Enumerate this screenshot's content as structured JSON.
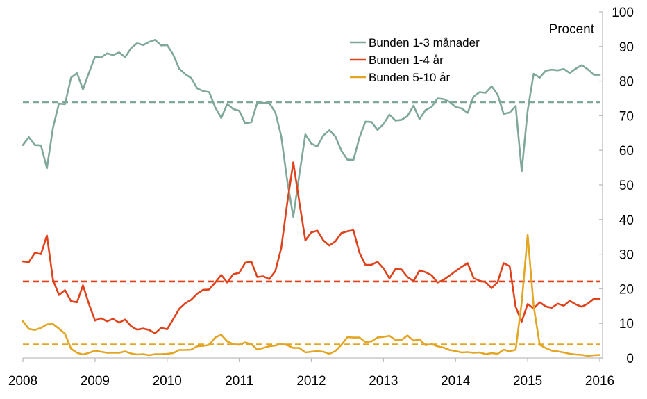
{
  "chart_data": {
    "type": "line",
    "unit_label": "Procent",
    "ylim": [
      0,
      100
    ],
    "y_ticks": [
      0,
      10,
      20,
      30,
      40,
      50,
      60,
      70,
      80,
      90,
      100
    ],
    "x_range": [
      2008,
      2016
    ],
    "x_ticks": [
      2008,
      2009,
      2010,
      2011,
      2012,
      2013,
      2014,
      2015,
      2016
    ],
    "legend_position": "top-right",
    "series": [
      {
        "name": "Bunden 1-3 månader",
        "color": "#7fa898",
        "x": [
          2008.0,
          2008.083,
          2008.167,
          2008.25,
          2008.333,
          2008.417,
          2008.5,
          2008.583,
          2008.667,
          2008.75,
          2008.833,
          2008.917,
          2009.0,
          2009.083,
          2009.167,
          2009.25,
          2009.333,
          2009.417,
          2009.5,
          2009.583,
          2009.667,
          2009.75,
          2009.833,
          2009.917,
          2010.0,
          2010.083,
          2010.167,
          2010.25,
          2010.333,
          2010.417,
          2010.5,
          2010.583,
          2010.667,
          2010.75,
          2010.833,
          2010.917,
          2011.0,
          2011.083,
          2011.167,
          2011.25,
          2011.333,
          2011.417,
          2011.5,
          2011.583,
          2011.667,
          2011.75,
          2011.833,
          2011.917,
          2012.0,
          2012.083,
          2012.167,
          2012.25,
          2012.333,
          2012.417,
          2012.5,
          2012.583,
          2012.667,
          2012.75,
          2012.833,
          2012.917,
          2013.0,
          2013.083,
          2013.167,
          2013.25,
          2013.333,
          2013.417,
          2013.5,
          2013.583,
          2013.667,
          2013.75,
          2013.833,
          2013.917,
          2014.0,
          2014.083,
          2014.167,
          2014.25,
          2014.333,
          2014.417,
          2014.5,
          2014.583,
          2014.667,
          2014.75,
          2014.833,
          2014.917,
          2015.0,
          2015.083,
          2015.167,
          2015.25,
          2015.333,
          2015.417,
          2015.5,
          2015.583,
          2015.667,
          2015.75,
          2015.833,
          2015.917,
          2016.0
        ],
        "values": [
          61.5,
          63.8,
          61.5,
          61.4,
          54.8,
          66.5,
          73.5,
          73.3,
          81.0,
          82.3,
          77.6,
          82.5,
          87.0,
          86.8,
          88.0,
          87.5,
          88.3,
          86.9,
          89.5,
          90.9,
          90.4,
          91.3,
          91.9,
          90.3,
          90.4,
          87.7,
          83.6,
          82.0,
          80.9,
          77.9,
          77.1,
          76.8,
          72.4,
          69.3,
          73.4,
          71.9,
          71.4,
          67.8,
          68.1,
          73.8,
          73.7,
          73.6,
          71.0,
          64.0,
          51.0,
          40.8,
          53.0,
          64.6,
          61.9,
          61.1,
          64.3,
          65.8,
          64.0,
          59.9,
          57.3,
          57.2,
          63.7,
          68.3,
          68.2,
          65.9,
          67.6,
          70.3,
          68.6,
          68.8,
          69.9,
          72.9,
          69.0,
          71.6,
          72.5,
          75.0,
          74.8,
          74.0,
          72.5,
          72.1,
          70.8,
          75.5,
          76.8,
          76.6,
          78.5,
          76.1,
          70.5,
          70.9,
          72.8,
          54.0,
          71.5,
          82.1,
          81.0,
          83.0,
          83.3,
          83.1,
          83.5,
          82.3,
          83.6,
          84.6,
          83.4,
          81.8,
          81.8
        ],
        "reference_level": 73.9
      },
      {
        "name": "Bunden 1-4 år",
        "color": "#e0421c",
        "x": [
          2008.0,
          2008.083,
          2008.167,
          2008.25,
          2008.333,
          2008.417,
          2008.5,
          2008.583,
          2008.667,
          2008.75,
          2008.833,
          2008.917,
          2009.0,
          2009.083,
          2009.167,
          2009.25,
          2009.333,
          2009.417,
          2009.5,
          2009.583,
          2009.667,
          2009.75,
          2009.833,
          2009.917,
          2010.0,
          2010.083,
          2010.167,
          2010.25,
          2010.333,
          2010.417,
          2010.5,
          2010.583,
          2010.667,
          2010.75,
          2010.833,
          2010.917,
          2011.0,
          2011.083,
          2011.167,
          2011.25,
          2011.333,
          2011.417,
          2011.5,
          2011.583,
          2011.667,
          2011.75,
          2011.833,
          2011.917,
          2012.0,
          2012.083,
          2012.167,
          2012.25,
          2012.333,
          2012.417,
          2012.5,
          2012.583,
          2012.667,
          2012.75,
          2012.833,
          2012.917,
          2013.0,
          2013.083,
          2013.167,
          2013.25,
          2013.333,
          2013.417,
          2013.5,
          2013.583,
          2013.667,
          2013.75,
          2013.833,
          2013.917,
          2014.0,
          2014.083,
          2014.167,
          2014.25,
          2014.333,
          2014.417,
          2014.5,
          2014.583,
          2014.667,
          2014.75,
          2014.833,
          2014.917,
          2015.0,
          2015.083,
          2015.167,
          2015.25,
          2015.333,
          2015.417,
          2015.5,
          2015.583,
          2015.667,
          2015.75,
          2015.833,
          2015.917,
          2016.0
        ],
        "values": [
          27.9,
          27.7,
          30.4,
          30.0,
          35.4,
          22.6,
          18.2,
          19.6,
          16.4,
          16.1,
          21.0,
          15.5,
          10.8,
          11.5,
          10.6,
          11.3,
          10.2,
          11.1,
          9.2,
          8.2,
          8.5,
          8.1,
          7.1,
          8.7,
          8.3,
          11.2,
          14.2,
          15.8,
          16.8,
          18.6,
          19.7,
          19.8,
          21.8,
          24.0,
          21.8,
          24.2,
          24.6,
          27.5,
          27.9,
          23.4,
          23.6,
          22.8,
          25.1,
          31.8,
          45.0,
          56.5,
          45.0,
          34.0,
          36.3,
          36.8,
          34.0,
          32.5,
          33.7,
          36.1,
          36.6,
          36.9,
          30.4,
          26.9,
          26.9,
          27.8,
          25.9,
          23.0,
          25.7,
          25.6,
          23.4,
          22.2,
          25.3,
          24.8,
          23.9,
          21.8,
          22.6,
          23.8,
          25.1,
          26.3,
          27.4,
          23.1,
          22.3,
          21.9,
          20.2,
          21.9,
          27.4,
          26.5,
          14.8,
          10.5,
          15.6,
          14.3,
          16.1,
          14.9,
          14.5,
          15.7,
          15.1,
          16.5,
          15.5,
          14.8,
          15.7,
          17.1,
          17.0
        ],
        "reference_level": 22.1
      },
      {
        "name": "Bunden 5-10 år",
        "color": "#e3a524",
        "x": [
          2008.0,
          2008.083,
          2008.167,
          2008.25,
          2008.333,
          2008.417,
          2008.5,
          2008.583,
          2008.667,
          2008.75,
          2008.833,
          2008.917,
          2009.0,
          2009.083,
          2009.167,
          2009.25,
          2009.333,
          2009.417,
          2009.5,
          2009.583,
          2009.667,
          2009.75,
          2009.833,
          2009.917,
          2010.0,
          2010.083,
          2010.167,
          2010.25,
          2010.333,
          2010.417,
          2010.5,
          2010.583,
          2010.667,
          2010.75,
          2010.833,
          2010.917,
          2011.0,
          2011.083,
          2011.167,
          2011.25,
          2011.333,
          2011.417,
          2011.5,
          2011.583,
          2011.667,
          2011.75,
          2011.833,
          2011.917,
          2012.0,
          2012.083,
          2012.167,
          2012.25,
          2012.333,
          2012.417,
          2012.5,
          2012.583,
          2012.667,
          2012.75,
          2012.833,
          2012.917,
          2013.0,
          2013.083,
          2013.167,
          2013.25,
          2013.333,
          2013.417,
          2013.5,
          2013.583,
          2013.667,
          2013.75,
          2013.833,
          2013.917,
          2014.0,
          2014.083,
          2014.167,
          2014.25,
          2014.333,
          2014.417,
          2014.5,
          2014.583,
          2014.667,
          2014.75,
          2014.833,
          2014.917,
          2015.0,
          2015.083,
          2015.167,
          2015.25,
          2015.333,
          2015.417,
          2015.5,
          2015.583,
          2015.667,
          2015.75,
          2015.833,
          2015.917,
          2016.0
        ],
        "values": [
          10.6,
          8.4,
          8.1,
          8.7,
          9.7,
          9.8,
          8.5,
          7.0,
          2.7,
          1.5,
          1.0,
          1.5,
          2.1,
          1.8,
          1.5,
          1.5,
          1.5,
          1.9,
          1.3,
          1.0,
          1.1,
          0.8,
          1.1,
          1.1,
          1.2,
          1.4,
          2.3,
          2.3,
          2.4,
          3.4,
          3.5,
          3.8,
          5.9,
          6.7,
          4.8,
          4.0,
          3.8,
          4.5,
          4.0,
          2.4,
          2.9,
          3.4,
          3.6,
          4.1,
          3.7,
          2.9,
          2.9,
          1.6,
          1.8,
          2.0,
          1.8,
          1.2,
          2.0,
          3.8,
          6.0,
          5.9,
          5.9,
          4.6,
          4.8,
          5.9,
          6.1,
          6.4,
          5.2,
          5.2,
          6.5,
          5.0,
          5.4,
          3.7,
          4.0,
          3.4,
          3.0,
          2.3,
          2.0,
          1.6,
          1.7,
          1.5,
          1.6,
          1.1,
          1.4,
          1.2,
          2.4,
          1.9,
          2.4,
          16.0,
          35.6,
          15.0,
          3.8,
          2.9,
          2.1,
          1.9,
          1.6,
          1.2,
          1.0,
          0.9,
          0.6,
          0.8,
          0.9
        ],
        "reference_level": 3.9
      }
    ]
  }
}
